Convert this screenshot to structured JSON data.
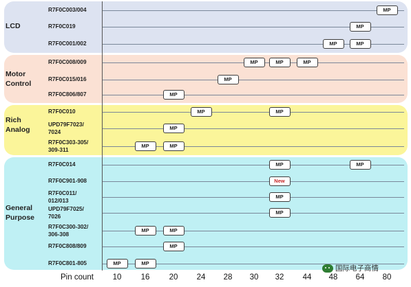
{
  "chart_data": {
    "type": "table",
    "x_axis_label": "Pin count",
    "pin_counts": [
      "10",
      "16",
      "20",
      "24",
      "28",
      "30",
      "32",
      "44",
      "48",
      "64",
      "80"
    ],
    "groups": [
      {
        "name": "LCD",
        "color": "#dde3f1",
        "rows": [
          {
            "label": "R7F0C003/004",
            "marks": [
              {
                "pin": "80",
                "text": "MP"
              }
            ]
          },
          {
            "label": "R7F0C019",
            "marks": [
              {
                "pin": "64",
                "text": "MP"
              }
            ]
          },
          {
            "label": "R7F0C001/002",
            "marks": [
              {
                "pin": "48",
                "text": "MP"
              },
              {
                "pin": "64",
                "text": "MP"
              }
            ]
          }
        ]
      },
      {
        "name": "Motor Control",
        "color": "#fbe1d4",
        "rows": [
          {
            "label": "R7F0C008/009",
            "marks": [
              {
                "pin": "30",
                "text": "MP"
              },
              {
                "pin": "32",
                "text": "MP"
              },
              {
                "pin": "44",
                "text": "MP"
              }
            ]
          },
          {
            "label": "R7F0C015/016",
            "marks": [
              {
                "pin": "28",
                "text": "MP"
              }
            ]
          },
          {
            "label": "R7F0C806/807",
            "marks": [
              {
                "pin": "20",
                "text": "MP"
              }
            ]
          }
        ]
      },
      {
        "name": "Rich Analog",
        "color": "#fbf59a",
        "rows": [
          {
            "label": "R7F0C010",
            "marks": [
              {
                "pin": "24",
                "text": "MP"
              },
              {
                "pin": "32",
                "text": "MP"
              }
            ]
          },
          {
            "label": "UPD79F7023/ 7024",
            "marks": [
              {
                "pin": "20",
                "text": "MP"
              }
            ]
          },
          {
            "label": "R7F0C303-305/ 309-311",
            "marks": [
              {
                "pin": "16",
                "text": "MP"
              },
              {
                "pin": "20",
                "text": "MP"
              }
            ]
          }
        ]
      },
      {
        "name": "General Purpose",
        "color": "#bff0f4",
        "rows": [
          {
            "label": "R7F0C014",
            "marks": [
              {
                "pin": "32",
                "text": "MP"
              },
              {
                "pin": "64",
                "text": "MP"
              }
            ]
          },
          {
            "label": "R7F0C901-908",
            "marks": [
              {
                "pin": "32",
                "text": "New"
              }
            ]
          },
          {
            "label": "R7F0C011/ 012/013",
            "marks": [
              {
                "pin": "32",
                "text": "MP"
              }
            ]
          },
          {
            "label": "UPD79F7025/ 7026",
            "marks": [
              {
                "pin": "32",
                "text": "MP"
              }
            ]
          },
          {
            "label": "R7F0C300-302/ 306-308",
            "marks": [
              {
                "pin": "16",
                "text": "MP"
              },
              {
                "pin": "20",
                "text": "MP"
              }
            ]
          },
          {
            "label": "R7F0C808/809",
            "marks": [
              {
                "pin": "20",
                "text": "MP"
              }
            ]
          },
          {
            "label": "R7F0C801-805",
            "marks": [
              {
                "pin": "10",
                "text": "MP"
              },
              {
                "pin": "16",
                "text": "MP"
              }
            ]
          }
        ]
      }
    ]
  },
  "watermark": {
    "text": "国际电子商情"
  }
}
